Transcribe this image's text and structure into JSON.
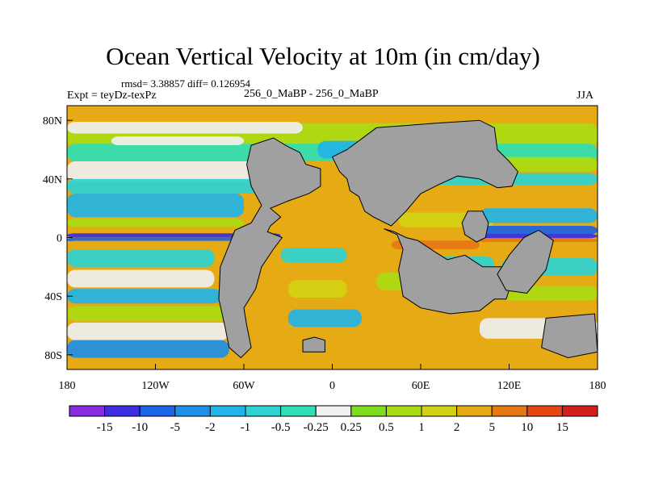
{
  "chart_data": {
    "type": "heatmap",
    "title": "Ocean Vertical Velocity at 10m (in cm/day)",
    "annotations": {
      "stats": "rmsd= 3.38857 diff= 0.126954",
      "experiment": "Expt = teyDz-texPz",
      "case": "256_0_MaBP - 256_0_MaBP",
      "season": "JJA"
    },
    "x_ticks": [
      "180",
      "120W",
      "60W",
      "0",
      "60E",
      "120E",
      "180"
    ],
    "y_ticks": [
      "80N",
      "40N",
      "0",
      "40S",
      "80S"
    ],
    "xlim": [
      -180,
      180
    ],
    "ylim": [
      -90,
      90
    ],
    "colorbar": {
      "levels": [
        "-15",
        "-10",
        "-5",
        "-2",
        "-1",
        "-0.5",
        "-0.25",
        "0.25",
        "0.5",
        "1",
        "2",
        "5",
        "10",
        "15"
      ],
      "colors": [
        "#8a2be2",
        "#3c2ee0",
        "#1a64e6",
        "#1e8fe6",
        "#22b4e6",
        "#2ed2d2",
        "#2ee0b4",
        "#f0f0f0",
        "#7ddc1e",
        "#aadc14",
        "#d2d214",
        "#e6aa14",
        "#e67814",
        "#e64614",
        "#d21e1e"
      ]
    },
    "land_color": "#a0a0a0"
  }
}
